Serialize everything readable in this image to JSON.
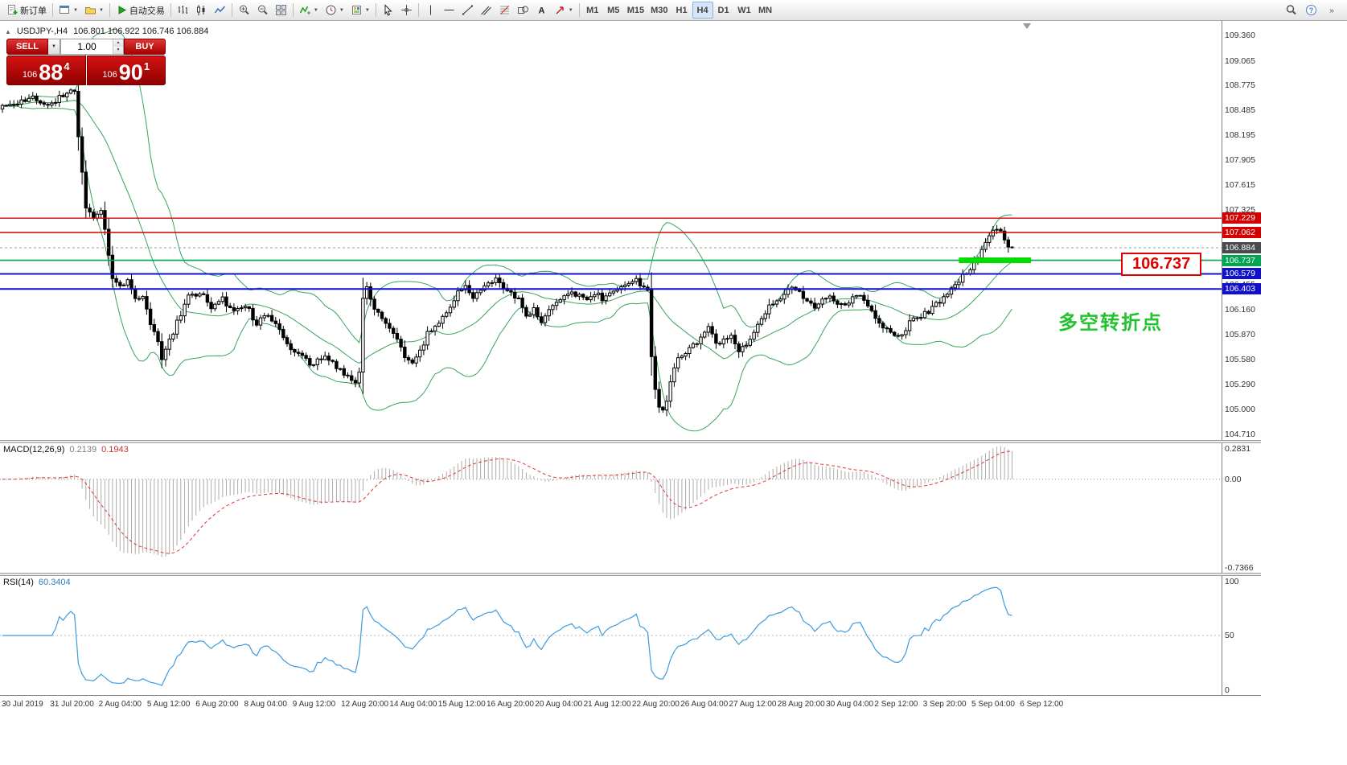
{
  "toolbar": {
    "groups": [
      {
        "items": [
          {
            "name": "new-order-button",
            "icon": "new-order-icon",
            "glyph": "doc-plus",
            "label": "新订单"
          }
        ]
      },
      {
        "items": [
          {
            "name": "new-chart-button",
            "icon": "new-chart-icon",
            "glyph": "window",
            "caret": true
          },
          {
            "name": "profiles-button",
            "icon": "profiles-icon",
            "glyph": "profiles",
            "caret": true
          }
        ]
      },
      {
        "items": [
          {
            "name": "autotrading-button",
            "icon": "autotrading-play-icon",
            "glyph": "play",
            "label": "自动交易"
          }
        ]
      },
      {
        "items": [
          {
            "name": "bar-chart-button",
            "icon": "bar-chart-icon",
            "glyph": "bars"
          },
          {
            "name": "candlestick-chart-button",
            "icon": "candlestick-icon",
            "glyph": "candles"
          },
          {
            "name": "line-chart-button",
            "icon": "line-chart-icon",
            "glyph": "linechart"
          }
        ]
      },
      {
        "items": [
          {
            "name": "zoom-in-button",
            "icon": "zoom-in-icon",
            "glyph": "zoom-in"
          },
          {
            "name": "zoom-out-button",
            "icon": "zoom-out-icon",
            "glyph": "zoom-out"
          },
          {
            "name": "tile-windows-button",
            "icon": "tile-windows-icon",
            "glyph": "tile"
          }
        ]
      },
      {
        "items": [
          {
            "name": "indicators-button",
            "icon": "indicators-icon",
            "glyph": "indicator",
            "caret": true
          },
          {
            "name": "periods-button",
            "icon": "clock-icon",
            "glyph": "clock",
            "caret": true
          },
          {
            "name": "templates-button",
            "icon": "template-icon",
            "glyph": "template",
            "caret": true
          }
        ]
      },
      {
        "items": [
          {
            "name": "cursor-button",
            "icon": "cursor-icon",
            "glyph": "cursor"
          },
          {
            "name": "crosshair-button",
            "icon": "crosshair-icon",
            "glyph": "crosshair"
          }
        ]
      },
      {
        "items": [
          {
            "name": "vertical-line-button",
            "icon": "vertical-line-icon",
            "glyph": "vline"
          },
          {
            "name": "horizontal-line-button",
            "icon": "horizontal-line-icon",
            "glyph": "hline"
          },
          {
            "name": "trendline-button",
            "icon": "trendline-icon",
            "glyph": "trend"
          },
          {
            "name": "channel-button",
            "icon": "channel-icon",
            "glyph": "channel"
          },
          {
            "name": "fibonacci-button",
            "icon": "fibonacci-icon",
            "glyph": "fibo"
          },
          {
            "name": "shapes-button",
            "icon": "shapes-icon",
            "glyph": "shapes"
          },
          {
            "name": "text-button",
            "icon": "text-icon",
            "glyph": "text"
          },
          {
            "name": "arrows-button",
            "icon": "arrow-icon",
            "glyph": "arrow",
            "caret": true
          }
        ]
      },
      {
        "items": [
          {
            "name": "timeframe-m1-button",
            "label": "M1"
          },
          {
            "name": "timeframe-m5-button",
            "label": "M5"
          },
          {
            "name": "timeframe-m15-button",
            "label": "M15"
          },
          {
            "name": "timeframe-m30-button",
            "label": "M30"
          },
          {
            "name": "timeframe-h1-button",
            "label": "H1"
          },
          {
            "name": "timeframe-h4-button",
            "label": "H4",
            "active": true
          },
          {
            "name": "timeframe-d1-button",
            "label": "D1"
          },
          {
            "name": "timeframe-w1-button",
            "label": "W1"
          },
          {
            "name": "timeframe-mn-button",
            "label": "MN"
          }
        ]
      }
    ],
    "right_items": [
      {
        "name": "search-button",
        "icon": "magnifier-icon",
        "glyph": "magnifier"
      },
      {
        "name": "help-button",
        "icon": "help-icon",
        "glyph": "help"
      },
      {
        "name": "toolbar-overflow-button",
        "icon": "chevrons-icon",
        "glyph": "chevrons"
      }
    ]
  },
  "symbol_info": {
    "symbol_period": "USDJPY-,H4",
    "ohlc": "106.801 106.922 106.746 106.884"
  },
  "one_click": {
    "sell_label": "SELL",
    "buy_label": "BUY",
    "volume": "1.00",
    "price_prefix": "106",
    "sell_big": "88",
    "sell_sup": "4",
    "buy_big": "90",
    "buy_sup": "1"
  },
  "price_axis": {
    "labels": [
      "109.360",
      "109.065",
      "108.775",
      "108.485",
      "108.195",
      "107.905",
      "107.615",
      "107.325",
      "107.035",
      "106.745",
      "106.455",
      "106.160",
      "105.870",
      "105.580",
      "105.290",
      "105.000",
      "104.710"
    ]
  },
  "time_axis": {
    "labels": [
      "30 Jul 2019",
      "31 Jul 20:00",
      "2 Aug 04:00",
      "5 Aug 12:00",
      "6 Aug 20:00",
      "8 Aug 04:00",
      "9 Aug 12:00",
      "12 Aug 20:00",
      "14 Aug 04:00",
      "15 Aug 12:00",
      "16 Aug 20:00",
      "20 Aug 04:00",
      "21 Aug 12:00",
      "22 Aug 20:00",
      "26 Aug 04:00",
      "27 Aug 12:00",
      "28 Aug 20:00",
      "30 Aug 04:00",
      "2 Sep 12:00",
      "3 Sep 20:00",
      "5 Sep 04:00",
      "6 Sep 12:00"
    ]
  },
  "macd": {
    "name": "MACD(12,26,9)",
    "value_main": "0.2139",
    "value_signal": "0.1943",
    "axis_labels": [
      "0.2831",
      "0.00",
      "-0.7366"
    ],
    "scale_max": 0.2831,
    "scale_min": -0.7366,
    "histogram_color": "#ABABAB",
    "signal_color": "#E03636"
  },
  "rsi": {
    "name": "RSI(14)",
    "value": "60.3404",
    "axis_labels": [
      "100",
      "50",
      "0"
    ],
    "level_line": 50,
    "line_color": "#3E9BDE"
  },
  "annotations": {
    "callout_text": "106.737",
    "callout_color": "#E00000",
    "turning_point_text": "多空转折点",
    "turning_point_color": "#22C32E"
  },
  "chart_data": {
    "type": "candlestick",
    "symbol": "USDJPY-",
    "timeframe": "H4",
    "title": "USDJPY-,H4 106.801 106.922 106.746 106.884",
    "current_ohlc": {
      "open": 106.801,
      "high": 106.922,
      "low": 106.746,
      "close": 106.884
    },
    "bars": 267,
    "bar_spacing": 4.72,
    "price_top": 109.53,
    "price_bottom": 104.641,
    "last_close": 106.884,
    "bull_color": "#FFFFFF",
    "bear_color": "#000000",
    "wick_color": "#000000",
    "bollinger_color": "#3AA35C",
    "price_anchors": [
      [
        0,
        108.52
      ],
      [
        4,
        108.56
      ],
      [
        8,
        108.62
      ],
      [
        12,
        108.55
      ],
      [
        16,
        108.66
      ],
      [
        18,
        108.74
      ],
      [
        19,
        108.68
      ],
      [
        20,
        108.2
      ],
      [
        21,
        107.75
      ],
      [
        22,
        107.32
      ],
      [
        24,
        107.22
      ],
      [
        26,
        107.32
      ],
      [
        27,
        107.1
      ],
      [
        28,
        106.8
      ],
      [
        29,
        106.55
      ],
      [
        31,
        106.42
      ],
      [
        33,
        106.52
      ],
      [
        35,
        106.3
      ],
      [
        37,
        106.28
      ],
      [
        39,
        106.0
      ],
      [
        41,
        105.8
      ],
      [
        42,
        105.55
      ],
      [
        43,
        105.68
      ],
      [
        45,
        105.9
      ],
      [
        47,
        106.12
      ],
      [
        49,
        106.3
      ],
      [
        52,
        106.38
      ],
      [
        55,
        106.18
      ],
      [
        58,
        106.28
      ],
      [
        61,
        106.12
      ],
      [
        64,
        106.22
      ],
      [
        67,
        106.0
      ],
      [
        70,
        106.12
      ],
      [
        73,
        105.9
      ],
      [
        76,
        105.72
      ],
      [
        79,
        105.6
      ],
      [
        82,
        105.52
      ],
      [
        85,
        105.62
      ],
      [
        88,
        105.48
      ],
      [
        91,
        105.38
      ],
      [
        93,
        105.3
      ],
      [
        94,
        105.42
      ],
      [
        95,
        106.3
      ],
      [
        96,
        106.42
      ],
      [
        98,
        106.2
      ],
      [
        100,
        106.05
      ],
      [
        102,
        105.95
      ],
      [
        104,
        105.8
      ],
      [
        106,
        105.62
      ],
      [
        108,
        105.52
      ],
      [
        110,
        105.68
      ],
      [
        112,
        105.88
      ],
      [
        114,
        105.98
      ],
      [
        116,
        106.08
      ],
      [
        118,
        106.18
      ],
      [
        120,
        106.35
      ],
      [
        122,
        106.42
      ],
      [
        124,
        106.28
      ],
      [
        126,
        106.4
      ],
      [
        128,
        106.5
      ],
      [
        130,
        106.52
      ],
      [
        132,
        106.44
      ],
      [
        134,
        106.36
      ],
      [
        136,
        106.28
      ],
      [
        138,
        106.08
      ],
      [
        140,
        106.18
      ],
      [
        142,
        105.98
      ],
      [
        144,
        106.15
      ],
      [
        146,
        106.25
      ],
      [
        148,
        106.3
      ],
      [
        150,
        106.38
      ],
      [
        152,
        106.32
      ],
      [
        154,
        106.26
      ],
      [
        156,
        106.36
      ],
      [
        158,
        106.3
      ],
      [
        160,
        106.36
      ],
      [
        162,
        106.42
      ],
      [
        164,
        106.48
      ],
      [
        166,
        106.52
      ],
      [
        168,
        106.46
      ],
      [
        170,
        106.4
      ],
      [
        171,
        105.6
      ],
      [
        172,
        105.2
      ],
      [
        173,
        105.05
      ],
      [
        174,
        104.98
      ],
      [
        175,
        105.12
      ],
      [
        176,
        105.3
      ],
      [
        177,
        105.45
      ],
      [
        178,
        105.58
      ],
      [
        180,
        105.68
      ],
      [
        182,
        105.75
      ],
      [
        184,
        105.82
      ],
      [
        186,
        105.95
      ],
      [
        188,
        105.75
      ],
      [
        190,
        105.8
      ],
      [
        192,
        105.88
      ],
      [
        194,
        105.7
      ],
      [
        196,
        105.78
      ],
      [
        198,
        105.9
      ],
      [
        200,
        106.08
      ],
      [
        202,
        106.2
      ],
      [
        204,
        106.28
      ],
      [
        206,
        106.35
      ],
      [
        208,
        106.42
      ],
      [
        210,
        106.35
      ],
      [
        212,
        106.28
      ],
      [
        214,
        106.2
      ],
      [
        216,
        106.26
      ],
      [
        218,
        106.32
      ],
      [
        220,
        106.2
      ],
      [
        222,
        106.24
      ],
      [
        224,
        106.28
      ],
      [
        226,
        106.32
      ],
      [
        228,
        106.2
      ],
      [
        230,
        106.08
      ],
      [
        232,
        105.98
      ],
      [
        234,
        105.88
      ],
      [
        236,
        105.82
      ],
      [
        238,
        105.95
      ],
      [
        240,
        106.05
      ],
      [
        242,
        106.1
      ],
      [
        244,
        106.14
      ],
      [
        246,
        106.22
      ],
      [
        248,
        106.3
      ],
      [
        250,
        106.4
      ],
      [
        252,
        106.5
      ],
      [
        254,
        106.6
      ],
      [
        256,
        106.72
      ],
      [
        258,
        106.88
      ],
      [
        260,
        107.0
      ],
      [
        261,
        107.08
      ],
      [
        262,
        107.12
      ],
      [
        263,
        107.05
      ],
      [
        264,
        106.98
      ],
      [
        265,
        106.92
      ],
      [
        266,
        106.884
      ]
    ],
    "horizontal_levels": [
      {
        "price": 107.229,
        "label": "107.229",
        "color": "#D40000",
        "width": 1.4
      },
      {
        "price": 107.062,
        "label": "107.062",
        "color": "#D40000",
        "width": 1.4
      },
      {
        "price": 106.737,
        "label": "106.737",
        "color": "#00A651",
        "width": 1.6
      },
      {
        "price": 106.579,
        "label": "106.579",
        "color": "#1111CC",
        "width": 2
      },
      {
        "price": 106.403,
        "label": "106.403",
        "color": "#1111CC",
        "width": 2
      }
    ],
    "bid_marker": {
      "price": 106.884,
      "label": "106.884",
      "color": "#4A4A4A"
    },
    "highlight_zone": {
      "price": 106.737,
      "bar_start": 252,
      "bar_end": 271,
      "color": "#00DB00",
      "thickness": 7
    }
  }
}
